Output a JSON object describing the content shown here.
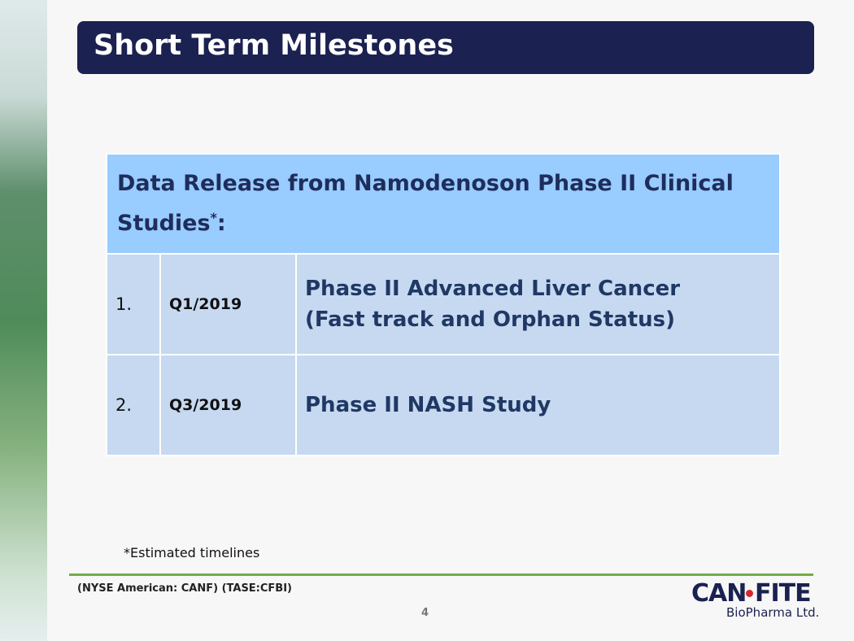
{
  "title": "Short Term Milestones",
  "table": {
    "header": {
      "text": "Data Release from Namodenoson Phase II Clinical Studies",
      "sup": "*",
      "suffix": ":"
    },
    "rows": [
      {
        "number": "1.",
        "date": "Q1/2019",
        "lines": [
          "Phase II Advanced Liver Cancer",
          "(Fast track and Orphan Status)"
        ]
      },
      {
        "number": "2.",
        "date": "Q3/2019",
        "lines": [
          "Phase II NASH Study"
        ]
      }
    ]
  },
  "footnote": "*Estimated timelines",
  "footer": {
    "tickers": "(NYSE American: CANF) (TASE:CFBI)",
    "page": "4"
  },
  "logo": {
    "part1": "CAN",
    "part2": "FITE",
    "tagline": "BioPharma Ltd."
  }
}
